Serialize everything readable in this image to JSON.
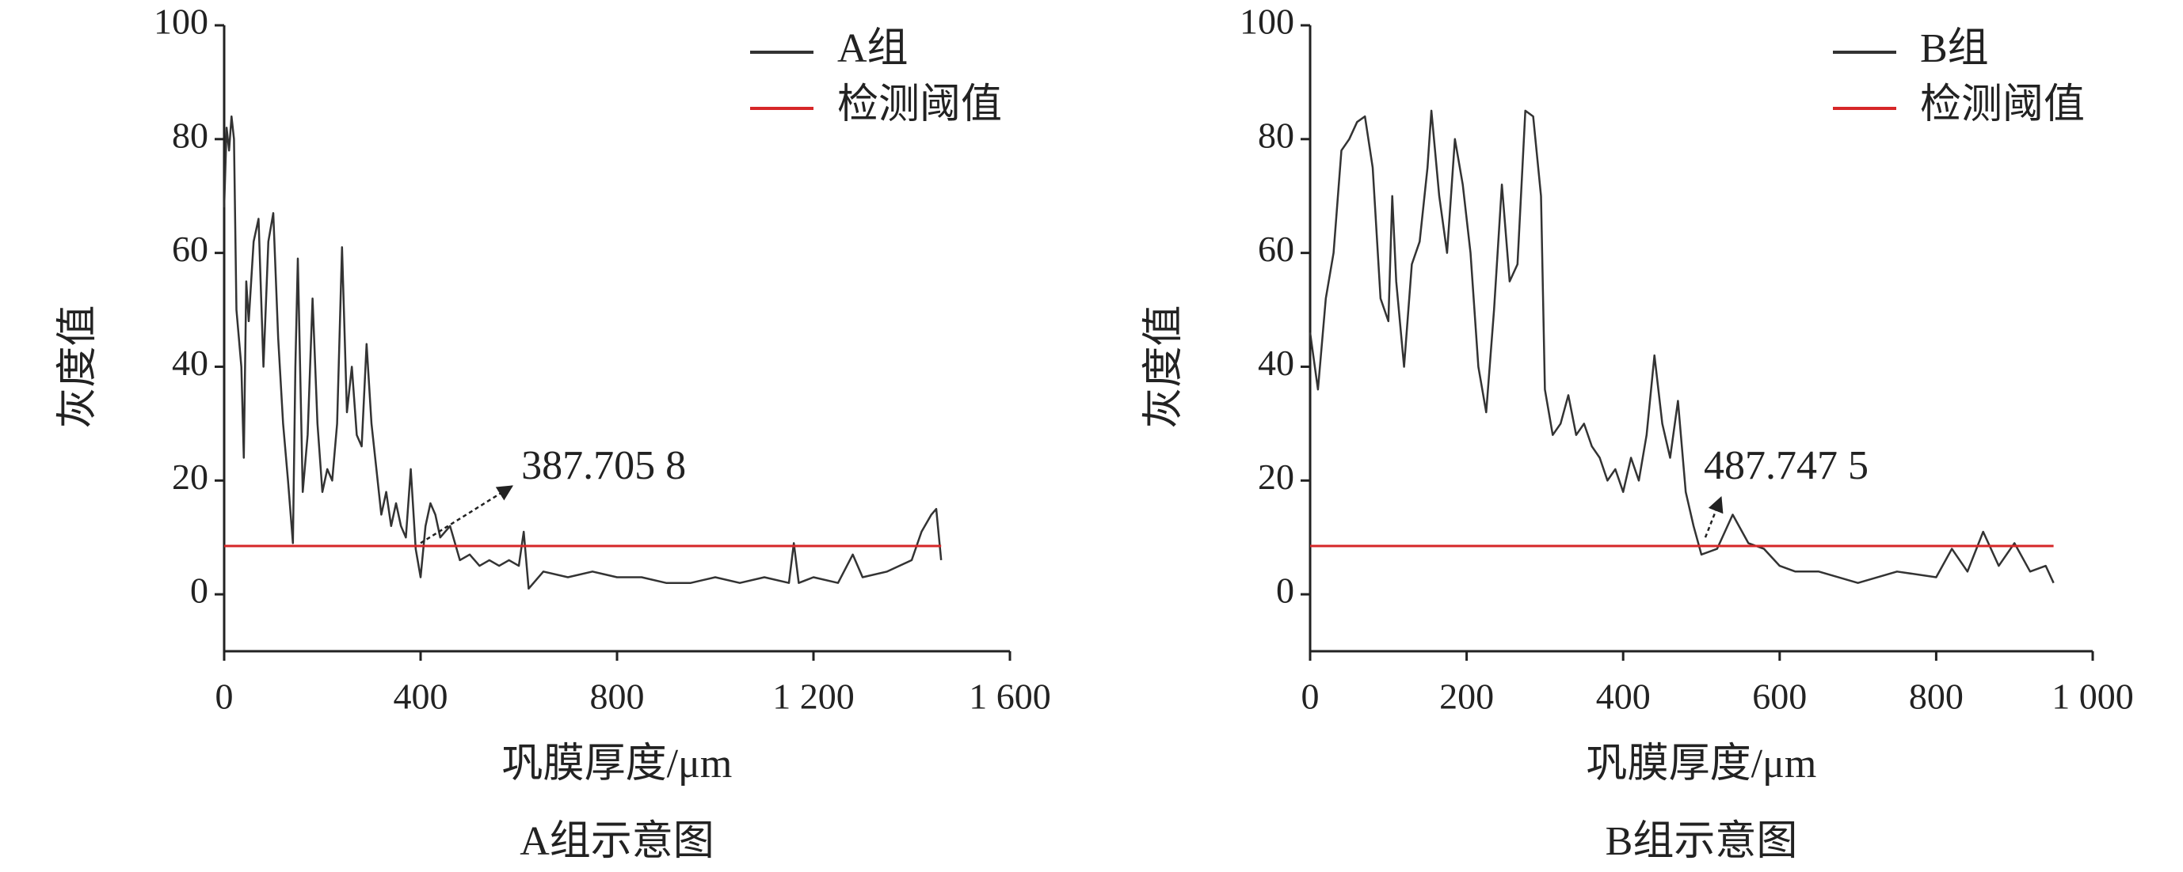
{
  "chart_data": [
    {
      "type": "line",
      "title": "A组示意图",
      "x_label": "巩膜厚度/μm",
      "y_label": "灰度值",
      "xlim": [
        0,
        1600
      ],
      "xticks": [
        0,
        400,
        800,
        {
          "value": 1200,
          "label": "1 200"
        },
        {
          "value": 1600,
          "label": "1 600"
        }
      ],
      "ylim": [
        -10,
        100
      ],
      "yticks": [
        0,
        20,
        40,
        60,
        80,
        100
      ],
      "legend": "upper right",
      "annotation": {
        "text": "387.705 8"
      },
      "series": [
        {
          "name": "A组",
          "color": "#333333",
          "x": [
            0,
            5,
            10,
            15,
            20,
            25,
            30,
            35,
            40,
            45,
            50,
            60,
            70,
            80,
            90,
            100,
            110,
            120,
            130,
            140,
            145,
            150,
            160,
            170,
            180,
            190,
            200,
            210,
            220,
            230,
            240,
            250,
            260,
            270,
            280,
            290,
            300,
            310,
            320,
            330,
            340,
            350,
            360,
            370,
            380,
            390,
            400,
            410,
            420,
            430,
            440,
            460,
            480,
            500,
            520,
            540,
            560,
            580,
            600,
            610,
            620,
            650,
            700,
            750,
            800,
            850,
            900,
            950,
            1000,
            1050,
            1100,
            1150,
            1160,
            1170,
            1200,
            1250,
            1280,
            1300,
            1350,
            1400,
            1420,
            1440,
            1450,
            1460
          ],
          "values": [
            68,
            82,
            78,
            84,
            80,
            50,
            45,
            40,
            24,
            55,
            48,
            62,
            66,
            40,
            62,
            67,
            45,
            30,
            20,
            9,
            40,
            59,
            18,
            28,
            52,
            30,
            18,
            22,
            20,
            30,
            61,
            32,
            40,
            28,
            26,
            44,
            30,
            22,
            14,
            18,
            12,
            16,
            12,
            10,
            22,
            8,
            3,
            12,
            16,
            14,
            10,
            12,
            6,
            7,
            5,
            6,
            5,
            6,
            5,
            11,
            1,
            4,
            3,
            4,
            3,
            3,
            2,
            2,
            3,
            2,
            3,
            2,
            9,
            2,
            3,
            2,
            7,
            3,
            4,
            6,
            11,
            14,
            15,
            6
          ]
        },
        {
          "name": "检测阈值",
          "color": "#d62728",
          "x": [
            0,
            1460
          ],
          "values": [
            8.5,
            8.5
          ]
        }
      ]
    },
    {
      "type": "line",
      "title": "B组示意图",
      "x_label": "巩膜厚度/μm",
      "y_label": "灰度值",
      "xlim": [
        0,
        1000
      ],
      "xticks": [
        0,
        200,
        400,
        600,
        800,
        {
          "value": 1000,
          "label": "1 000"
        }
      ],
      "ylim": [
        -10,
        100
      ],
      "yticks": [
        0,
        20,
        40,
        60,
        80,
        100
      ],
      "legend": "upper right",
      "annotation": {
        "text": "487.747 5"
      },
      "series": [
        {
          "name": "B组",
          "color": "#333333",
          "x": [
            0,
            10,
            20,
            30,
            40,
            50,
            60,
            70,
            80,
            90,
            100,
            105,
            110,
            120,
            130,
            140,
            150,
            155,
            165,
            175,
            185,
            195,
            205,
            215,
            225,
            235,
            245,
            255,
            265,
            275,
            285,
            295,
            300,
            310,
            320,
            330,
            340,
            350,
            360,
            370,
            380,
            390,
            400,
            410,
            420,
            430,
            440,
            450,
            460,
            470,
            480,
            490,
            500,
            520,
            540,
            560,
            580,
            600,
            620,
            650,
            700,
            750,
            800,
            820,
            840,
            860,
            880,
            900,
            920,
            940,
            950
          ],
          "values": [
            46,
            36,
            52,
            60,
            78,
            80,
            83,
            84,
            75,
            52,
            48,
            70,
            55,
            40,
            58,
            62,
            75,
            85,
            70,
            60,
            80,
            72,
            60,
            40,
            32,
            50,
            72,
            55,
            58,
            85,
            84,
            70,
            36,
            28,
            30,
            35,
            28,
            30,
            26,
            24,
            20,
            22,
            18,
            24,
            20,
            28,
            42,
            30,
            24,
            34,
            18,
            12,
            7,
            8,
            14,
            9,
            8,
            5,
            4,
            4,
            2,
            4,
            3,
            8,
            4,
            11,
            5,
            9,
            4,
            5,
            2
          ]
        },
        {
          "name": "检测阈值",
          "color": "#d62728",
          "x": [
            0,
            950
          ],
          "values": [
            8.5,
            8.5
          ]
        }
      ]
    }
  ]
}
